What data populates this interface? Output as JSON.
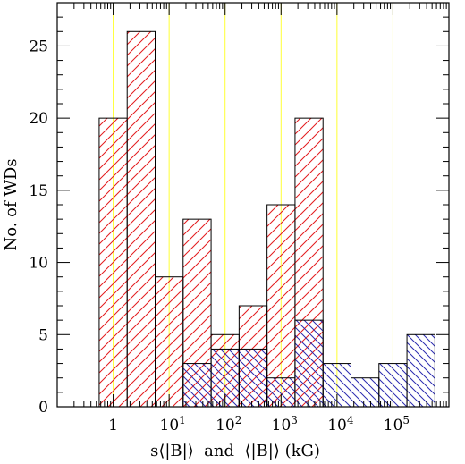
{
  "chart_data": {
    "type": "bar",
    "subtype": "overlapping-histogram",
    "xscale": "log10",
    "xlabel": "s⟨|B|⟩  and  ⟨|B|⟩ (kG)",
    "ylabel": "No. of WDs",
    "xlim": [
      0.1,
      1000000
    ],
    "ylim": [
      0,
      28
    ],
    "yticks": [
      0,
      5,
      10,
      15,
      20,
      25
    ],
    "xticks": [
      {
        "value": 1,
        "base": "1",
        "exp": ""
      },
      {
        "value": 10,
        "base": "10",
        "exp": "1"
      },
      {
        "value": 100,
        "base": "10",
        "exp": "2"
      },
      {
        "value": 1000,
        "base": "10",
        "exp": "3"
      },
      {
        "value": 10000,
        "base": "10",
        "exp": "4"
      },
      {
        "value": 100000,
        "base": "10",
        "exp": "5"
      }
    ],
    "reference_lines": [
      1,
      10,
      100,
      1000,
      10000,
      100000
    ],
    "reference_line_color": "#ffff33",
    "series": [
      {
        "color": "#e31a1c",
        "hatch": "diagonal-up",
        "bin_edges": [
          0.5623,
          1.7783,
          5.6234,
          17.783,
          56.234,
          177.83,
          562.34,
          1778.3,
          5623.4,
          17783,
          56234,
          177830,
          562340
        ],
        "values": [
          20,
          26,
          9,
          13,
          5,
          7,
          14,
          20,
          0,
          0,
          0,
          0
        ]
      },
      {
        "color": "#2b2bb0",
        "hatch": "diagonal-down",
        "bin_edges": [
          0.5623,
          1.7783,
          5.6234,
          17.783,
          56.234,
          177.83,
          562.34,
          1778.3,
          5623.4,
          17783,
          56234,
          177830,
          562340
        ],
        "values": [
          0,
          0,
          0,
          3,
          4,
          4,
          2,
          6,
          3,
          2,
          3,
          5
        ]
      }
    ]
  }
}
